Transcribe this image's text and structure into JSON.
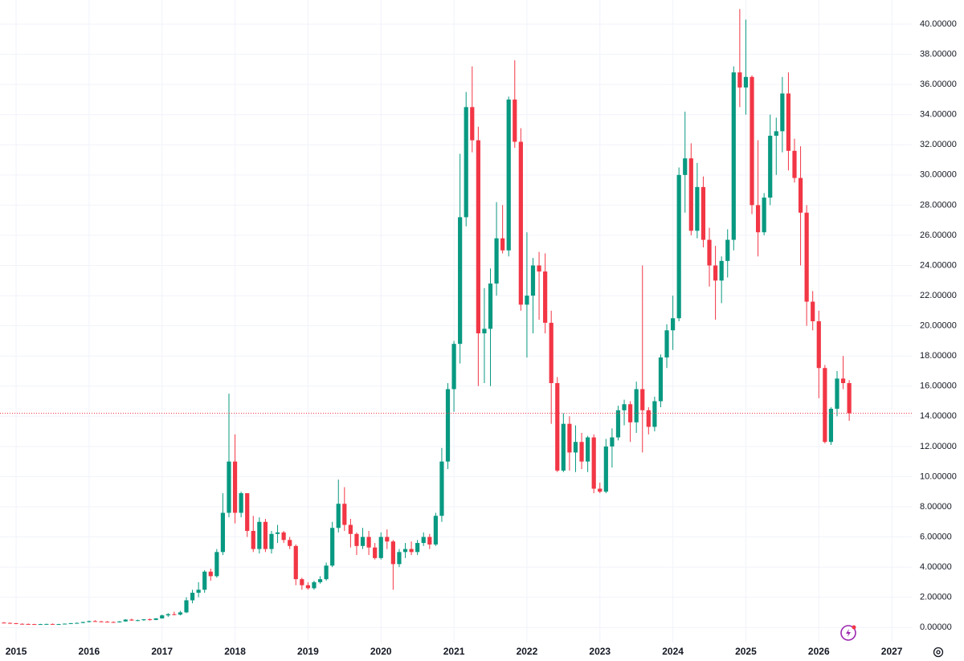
{
  "chart_data": {
    "type": "candlestick",
    "up_color": "#089981",
    "down_color": "#f23645",
    "grid": true,
    "ylim": [
      -1.0,
      41.6
    ],
    "yticks": [
      {
        "value": 0,
        "label": "0.00000"
      },
      {
        "value": 2,
        "label": "2.00000"
      },
      {
        "value": 4,
        "label": "4.00000"
      },
      {
        "value": 6,
        "label": "6.00000"
      },
      {
        "value": 8,
        "label": "8.00000"
      },
      {
        "value": 10,
        "label": "10.00000"
      },
      {
        "value": 12,
        "label": "12.00000"
      },
      {
        "value": 14,
        "label": "14.00000"
      },
      {
        "value": 16,
        "label": "16.00000"
      },
      {
        "value": 18,
        "label": "18.00000"
      },
      {
        "value": 20,
        "label": "20.00000"
      },
      {
        "value": 22,
        "label": "22.00000"
      },
      {
        "value": 24,
        "label": "24.00000"
      },
      {
        "value": 26,
        "label": "26.00000"
      },
      {
        "value": 28,
        "label": "28.00000"
      },
      {
        "value": 30,
        "label": "30.00000"
      },
      {
        "value": 32,
        "label": "32.00000"
      },
      {
        "value": 34,
        "label": "34.00000"
      },
      {
        "value": 36,
        "label": "36.00000"
      },
      {
        "value": 38,
        "label": "38.00000"
      },
      {
        "value": 40,
        "label": "40.00000"
      }
    ],
    "categories": [
      null,
      null,
      "2015",
      null,
      null,
      null,
      null,
      null,
      null,
      null,
      null,
      null,
      null,
      null,
      "2016",
      null,
      null,
      null,
      null,
      null,
      null,
      null,
      null,
      null,
      null,
      null,
      "2017",
      null,
      null,
      null,
      null,
      null,
      null,
      null,
      null,
      null,
      null,
      null,
      "2018",
      null,
      null,
      null,
      null,
      null,
      null,
      null,
      null,
      null,
      null,
      null,
      "2019",
      null,
      null,
      null,
      null,
      null,
      null,
      null,
      null,
      null,
      null,
      null,
      "2020",
      null,
      null,
      null,
      null,
      null,
      null,
      null,
      null,
      null,
      null,
      null,
      "2021",
      null,
      null,
      null,
      null,
      null,
      null,
      null,
      null,
      null,
      null,
      null,
      "2022",
      null,
      null,
      null,
      null,
      null,
      null,
      null,
      null,
      null,
      null,
      null,
      "2023",
      null,
      null,
      null,
      null,
      null,
      null,
      null,
      null,
      null,
      null,
      null,
      "2024",
      null,
      null,
      null,
      null,
      null,
      null,
      null,
      null,
      null,
      null,
      null,
      "2025",
      null,
      null,
      null,
      null,
      null,
      null,
      null,
      null,
      null,
      null,
      null,
      "2026",
      null,
      null,
      null,
      null,
      null,
      null,
      null,
      null,
      null,
      null,
      null,
      "2027"
    ],
    "ohlc": [
      [
        0.32,
        0.36,
        0.28,
        0.3
      ],
      [
        0.3,
        0.33,
        0.26,
        0.28
      ],
      [
        0.28,
        0.3,
        0.22,
        0.24
      ],
      [
        0.24,
        0.27,
        0.21,
        0.23
      ],
      [
        0.23,
        0.26,
        0.2,
        0.22
      ],
      [
        0.22,
        0.24,
        0.19,
        0.21
      ],
      [
        0.21,
        0.24,
        0.19,
        0.22
      ],
      [
        0.22,
        0.25,
        0.2,
        0.23
      ],
      [
        0.23,
        0.26,
        0.2,
        0.21
      ],
      [
        0.21,
        0.24,
        0.19,
        0.22
      ],
      [
        0.22,
        0.26,
        0.21,
        0.25
      ],
      [
        0.25,
        0.3,
        0.23,
        0.28
      ],
      [
        0.28,
        0.33,
        0.26,
        0.3
      ],
      [
        0.3,
        0.38,
        0.28,
        0.36
      ],
      [
        0.36,
        0.45,
        0.33,
        0.42
      ],
      [
        0.42,
        0.48,
        0.38,
        0.4
      ],
      [
        0.4,
        0.44,
        0.36,
        0.38
      ],
      [
        0.38,
        0.42,
        0.34,
        0.36
      ],
      [
        0.36,
        0.4,
        0.32,
        0.34
      ],
      [
        0.34,
        0.42,
        0.32,
        0.4
      ],
      [
        0.4,
        0.55,
        0.38,
        0.52
      ],
      [
        0.52,
        0.58,
        0.44,
        0.46
      ],
      [
        0.46,
        0.52,
        0.42,
        0.48
      ],
      [
        0.48,
        0.56,
        0.44,
        0.54
      ],
      [
        0.54,
        0.6,
        0.46,
        0.5
      ],
      [
        0.5,
        0.62,
        0.48,
        0.6
      ],
      [
        0.6,
        0.85,
        0.58,
        0.8
      ],
      [
        0.8,
        0.95,
        0.7,
        0.88
      ],
      [
        0.88,
        1.05,
        0.8,
        0.85
      ],
      [
        0.85,
        1.1,
        0.8,
        1.0
      ],
      [
        1.0,
        2.0,
        0.95,
        1.8
      ],
      [
        1.8,
        2.5,
        1.6,
        2.3
      ],
      [
        2.3,
        3.0,
        2.0,
        2.5
      ],
      [
        2.5,
        3.8,
        2.3,
        3.7
      ],
      [
        3.7,
        3.9,
        3.1,
        3.4
      ],
      [
        3.4,
        5.2,
        3.3,
        5.0
      ],
      [
        5.0,
        8.9,
        4.8,
        7.6
      ],
      [
        7.6,
        15.5,
        7.3,
        11.0
      ],
      [
        11.0,
        12.8,
        6.9,
        7.6
      ],
      [
        7.6,
        9.0,
        7.3,
        8.9
      ],
      [
        8.9,
        8.9,
        6.0,
        6.4
      ],
      [
        6.4,
        7.4,
        5.0,
        5.2
      ],
      [
        5.2,
        7.3,
        4.9,
        7.0
      ],
      [
        7.0,
        7.2,
        5.0,
        5.2
      ],
      [
        5.2,
        6.4,
        4.9,
        6.2
      ],
      [
        6.2,
        6.8,
        5.6,
        6.3
      ],
      [
        6.3,
        6.4,
        5.6,
        5.8
      ],
      [
        5.8,
        6.0,
        5.2,
        5.4
      ],
      [
        5.4,
        5.5,
        2.8,
        3.2
      ],
      [
        3.2,
        3.3,
        2.5,
        2.8
      ],
      [
        2.8,
        3.0,
        2.5,
        2.6
      ],
      [
        2.6,
        3.1,
        2.5,
        3.0
      ],
      [
        3.0,
        3.4,
        2.9,
        3.2
      ],
      [
        3.2,
        4.3,
        3.1,
        4.1
      ],
      [
        4.1,
        7.0,
        4.0,
        6.6
      ],
      [
        6.6,
        9.8,
        6.3,
        8.2
      ],
      [
        8.2,
        9.3,
        6.4,
        6.8
      ],
      [
        6.8,
        7.2,
        5.3,
        6.2
      ],
      [
        6.2,
        6.3,
        4.8,
        5.4
      ],
      [
        5.4,
        6.6,
        5.2,
        6.0
      ],
      [
        6.0,
        6.4,
        4.8,
        5.3
      ],
      [
        5.3,
        5.6,
        4.5,
        4.6
      ],
      [
        4.6,
        6.3,
        4.5,
        6.0
      ],
      [
        6.0,
        6.5,
        5.2,
        5.7
      ],
      [
        5.7,
        5.8,
        2.5,
        4.2
      ],
      [
        4.2,
        5.2,
        4.0,
        5.0
      ],
      [
        5.0,
        5.6,
        4.6,
        5.2
      ],
      [
        5.2,
        5.7,
        4.8,
        5.0
      ],
      [
        5.0,
        5.8,
        4.8,
        5.6
      ],
      [
        5.6,
        6.3,
        5.4,
        6.0
      ],
      [
        6.0,
        6.2,
        5.2,
        5.5
      ],
      [
        5.5,
        7.6,
        5.4,
        7.4
      ],
      [
        7.4,
        11.9,
        7.0,
        11.0
      ],
      [
        11.0,
        16.2,
        10.5,
        15.8
      ],
      [
        15.8,
        19.0,
        14.3,
        18.8
      ],
      [
        18.8,
        31.4,
        17.5,
        27.2
      ],
      [
        27.2,
        35.5,
        26.6,
        34.5
      ],
      [
        34.5,
        37.2,
        31.5,
        32.3
      ],
      [
        32.3,
        33.2,
        16.0,
        19.5
      ],
      [
        19.5,
        22.5,
        16.2,
        19.8
      ],
      [
        19.8,
        23.8,
        16.0,
        22.8
      ],
      [
        22.8,
        28.2,
        22.0,
        25.8
      ],
      [
        25.8,
        28.0,
        24.8,
        25.0
      ],
      [
        25.0,
        35.2,
        24.6,
        35.0
      ],
      [
        35.0,
        37.6,
        31.8,
        32.2
      ],
      [
        32.2,
        33.1,
        21.0,
        21.4
      ],
      [
        21.4,
        26.2,
        17.9,
        22.0
      ],
      [
        22.0,
        24.5,
        19.5,
        24.0
      ],
      [
        24.0,
        24.9,
        20.4,
        23.6
      ],
      [
        23.6,
        24.8,
        19.5,
        20.2
      ],
      [
        20.2,
        21.0,
        13.5,
        16.2
      ],
      [
        16.2,
        16.6,
        10.3,
        10.4
      ],
      [
        10.4,
        14.2,
        10.3,
        13.5
      ],
      [
        13.5,
        14.0,
        10.4,
        11.6
      ],
      [
        11.6,
        13.4,
        10.3,
        12.3
      ],
      [
        12.3,
        12.9,
        10.5,
        11.0
      ],
      [
        11.0,
        12.7,
        10.3,
        12.6
      ],
      [
        12.6,
        12.8,
        8.9,
        9.2
      ],
      [
        9.2,
        9.6,
        8.9,
        9.0
      ],
      [
        9.0,
        12.5,
        8.9,
        12.0
      ],
      [
        12.0,
        13.2,
        10.6,
        12.6
      ],
      [
        12.6,
        14.7,
        12.4,
        14.4
      ],
      [
        14.4,
        15.1,
        13.4,
        14.8
      ],
      [
        14.8,
        15.0,
        12.3,
        13.6
      ],
      [
        13.6,
        16.3,
        12.9,
        15.8
      ],
      [
        15.8,
        24.0,
        11.6,
        14.4
      ],
      [
        14.4,
        14.6,
        12.8,
        13.3
      ],
      [
        13.3,
        15.3,
        13.0,
        15.0
      ],
      [
        15.0,
        18.1,
        14.6,
        17.9
      ],
      [
        17.9,
        20.1,
        17.2,
        19.7
      ],
      [
        19.7,
        22.0,
        18.4,
        20.5
      ],
      [
        20.5,
        30.5,
        20.3,
        30.0
      ],
      [
        30.0,
        34.2,
        27.5,
        31.1
      ],
      [
        31.1,
        32.1,
        26.0,
        26.3
      ],
      [
        26.3,
        30.8,
        25.8,
        29.2
      ],
      [
        29.2,
        29.9,
        25.2,
        25.7
      ],
      [
        25.7,
        26.5,
        22.6,
        24.0
      ],
      [
        24.0,
        25.3,
        20.4,
        23.0
      ],
      [
        23.0,
        24.6,
        21.5,
        24.3
      ],
      [
        24.3,
        26.4,
        23.2,
        25.7
      ],
      [
        25.7,
        37.2,
        25.0,
        36.8
      ],
      [
        36.8,
        41.0,
        34.5,
        35.8
      ],
      [
        35.8,
        40.3,
        34.0,
        36.5
      ],
      [
        36.5,
        36.6,
        27.4,
        28.0
      ],
      [
        28.0,
        32.3,
        24.6,
        26.2
      ],
      [
        26.2,
        28.8,
        26.0,
        28.5
      ],
      [
        28.5,
        34.0,
        28.0,
        32.6
      ],
      [
        32.6,
        33.8,
        30.0,
        32.9
      ],
      [
        32.9,
        36.5,
        31.5,
        35.4
      ],
      [
        35.4,
        36.8,
        30.3,
        31.6
      ],
      [
        31.6,
        32.4,
        29.5,
        29.8
      ],
      [
        29.8,
        31.9,
        24.0,
        27.5
      ],
      [
        27.5,
        28.0,
        20.0,
        21.6
      ],
      [
        21.6,
        22.3,
        19.7,
        20.3
      ],
      [
        20.3,
        21.0,
        15.2,
        17.2
      ],
      [
        17.2,
        17.4,
        12.2,
        12.3
      ],
      [
        12.3,
        14.6,
        12.1,
        14.5
      ],
      [
        14.5,
        17.0,
        14.0,
        16.5
      ],
      [
        16.5,
        18.0,
        15.8,
        16.2
      ],
      [
        16.2,
        16.4,
        13.7,
        14.2
      ],
      null,
      null,
      null,
      null,
      null,
      null,
      null
    ]
  }
}
